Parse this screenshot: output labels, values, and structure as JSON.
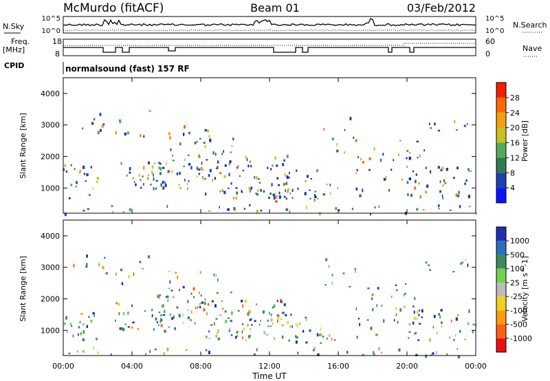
{
  "header": {
    "station": "McMurdo (fitACF)",
    "beam": "Beam 01",
    "date": "03/Feb/2012"
  },
  "noise_panel": {
    "left_label": "N.Sky",
    "right_label": "N.Search",
    "left_ticks": [
      "10^5",
      "10^0"
    ],
    "right_ticks": [
      "10^5",
      "10^0"
    ]
  },
  "freq_panel": {
    "left_label_1": "Freq.",
    "left_label_2": "[MHz]",
    "right_label": "Nave",
    "left_ticks": [
      "18",
      "8"
    ],
    "right_ticks": [
      "60",
      "0"
    ]
  },
  "cpid": {
    "label": "CPID",
    "value": "normalsound (fast) 157 RF"
  },
  "chart_data": [
    {
      "type": "heatmap",
      "panel": "power",
      "ylabel": "Slant Range [km]",
      "y_ticks": [
        "1000",
        "2000",
        "3000",
        "4000"
      ],
      "ylim": [
        200,
        4500
      ],
      "colorbar_label": "Power [dB]",
      "colorbar_ticks": [
        "4",
        "8",
        "12",
        "16",
        "20",
        "24",
        "28"
      ],
      "colorbar_colors": [
        "#0a14ff",
        "#1f3fb0",
        "#2f7a55",
        "#57a85a",
        "#c8c020",
        "#f0a010",
        "#ff6a00",
        "#f02000"
      ]
    },
    {
      "type": "heatmap",
      "panel": "velocity",
      "ylabel": "Slant Range [km]",
      "y_ticks": [
        "1000",
        "2000",
        "3000",
        "4000"
      ],
      "ylim": [
        200,
        4500
      ],
      "xlabel": "Time UT",
      "x_ticks": [
        "00:00",
        "04:00",
        "08:00",
        "12:00",
        "16:00",
        "20:00",
        "00:00"
      ],
      "colorbar_label": "Velocity [m s^-1]",
      "colorbar_ticks": [
        "1000",
        "500",
        "100",
        "25",
        "-25",
        "-100",
        "-500",
        "-1000"
      ],
      "colorbar_colors": [
        "#1f2fb0",
        "#2a6fc0",
        "#3d8a5a",
        "#6fd24a",
        "#bbbbbb",
        "#f0d020",
        "#ff9a10",
        "#ff6010",
        "#ee1010"
      ]
    }
  ]
}
